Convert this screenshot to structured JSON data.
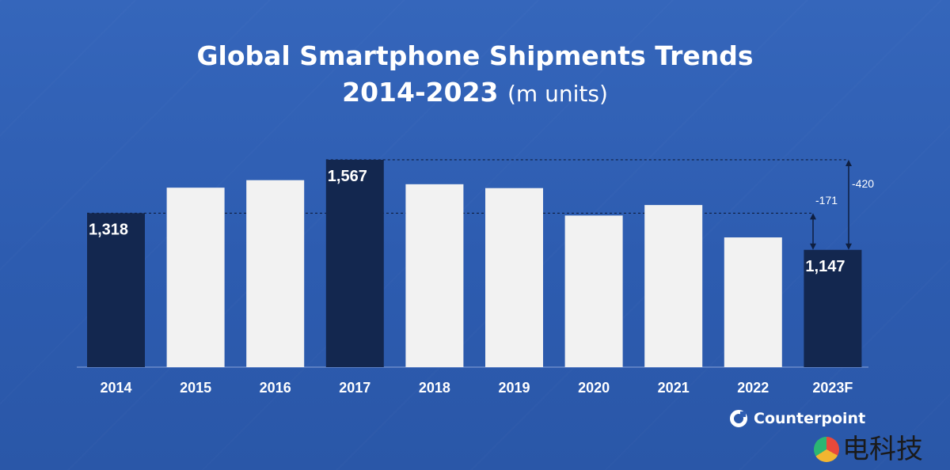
{
  "header": {
    "title_line1": "Global Smartphone Shipments Trends",
    "title_line2_bold": "2014-2023",
    "title_line2_rest": "(m units)"
  },
  "chart_data": {
    "type": "bar",
    "title": "Global Smartphone Shipments Trends 2014-2023 (m units)",
    "xlabel": "",
    "ylabel": "",
    "categories": [
      "2014",
      "2015",
      "2016",
      "2017",
      "2018",
      "2019",
      "2020",
      "2021",
      "2022",
      "2023F"
    ],
    "values": [
      1318,
      1437,
      1472,
      1567,
      1453,
      1435,
      1307,
      1356,
      1205,
      1147
    ],
    "highlighted": [
      true,
      false,
      false,
      true,
      false,
      false,
      false,
      false,
      false,
      true
    ],
    "data_labels": {
      "0": "1,318",
      "3": "1,567",
      "9": "1,147"
    },
    "ylim": [
      600,
      1600
    ],
    "grid": false,
    "annotations": [
      {
        "label": "-171",
        "from": 1318,
        "to": 1147
      },
      {
        "label": "-420",
        "from": 1567,
        "to": 1147
      }
    ],
    "colors": {
      "highlight": "#13274f",
      "normal": "#f2f2f2",
      "axis": "#5b7ec2",
      "text": "#ffffff"
    }
  },
  "footer": {
    "logo_text": "Counterpoint",
    "watermark_text": "电科技"
  }
}
